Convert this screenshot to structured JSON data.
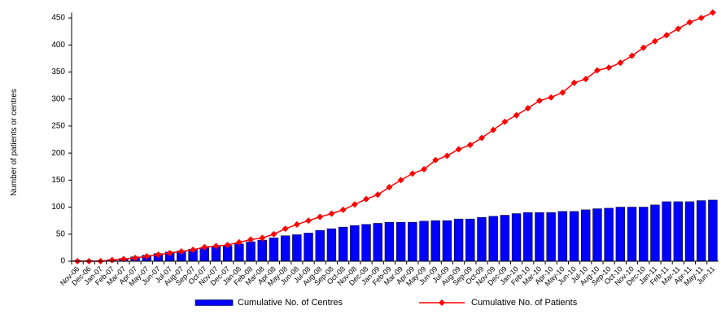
{
  "chart_data": {
    "type": "combo",
    "y_label": "Number of patients or centres",
    "categories": [
      "Nov-06",
      "Dec-06",
      "Jan-07",
      "Feb-07",
      "Mar-07",
      "Apr-07",
      "May-07",
      "Jun-07",
      "Jul-07",
      "Aug-07",
      "Sep-07",
      "Oct-07",
      "Nov-07",
      "Dec-07",
      "Jan-08",
      "Feb-08",
      "Mar-08",
      "Apr-08",
      "May-08",
      "Jun-08",
      "Jul-08",
      "Aug-08",
      "Sep-08",
      "Oct-08",
      "Nov-08",
      "Dec-08",
      "Jan-09",
      "Feb-09",
      "Mar-09",
      "Apr-09",
      "May-09",
      "Jun-09",
      "Jul-09",
      "Aug-09",
      "Sep-09",
      "Oct-09",
      "Nov-09",
      "Dec-09",
      "Jan-10",
      "Feb-10",
      "Mar-10",
      "Apr-10",
      "May-10",
      "Jun-10",
      "Jul-10",
      "Aug-10",
      "Sep-10",
      "Oct-10",
      "Nov-10",
      "Dec-10",
      "Jan-11",
      "Feb-11",
      "Mar-11",
      "Apr-11",
      "May-11",
      "Jun-11"
    ],
    "series": [
      {
        "name": "Cumulative No. of Centres",
        "type": "bar",
        "color": "#0000ff",
        "values": [
          1,
          1,
          1,
          3,
          5,
          8,
          11,
          14,
          17,
          19,
          22,
          25,
          27,
          29,
          32,
          36,
          39,
          43,
          47,
          49,
          52,
          57,
          60,
          63,
          66,
          68,
          70,
          72,
          72,
          72,
          74,
          75,
          75,
          78,
          78,
          81,
          83,
          85,
          88,
          90,
          90,
          90,
          92,
          92,
          95,
          97,
          98,
          100,
          100,
          100,
          104,
          110,
          110,
          110,
          112,
          113
        ]
      },
      {
        "name": "Cumulative No. of Patients",
        "type": "line",
        "color": "#ff0000",
        "values": [
          0,
          0,
          0,
          2,
          4,
          6,
          9,
          12,
          15,
          18,
          21,
          26,
          28,
          30,
          35,
          40,
          43,
          50,
          60,
          68,
          75,
          82,
          88,
          95,
          105,
          115,
          123,
          137,
          150,
          162,
          170,
          187,
          195,
          207,
          215,
          228,
          243,
          258,
          270,
          283,
          297,
          303,
          312,
          330,
          337,
          353,
          358,
          367,
          380,
          395,
          407,
          418,
          430,
          442,
          450,
          460
        ]
      }
    ],
    "ylim": [
      0,
      460
    ],
    "yticks": [
      0,
      50,
      100,
      150,
      200,
      250,
      300,
      350,
      400,
      450
    ]
  }
}
